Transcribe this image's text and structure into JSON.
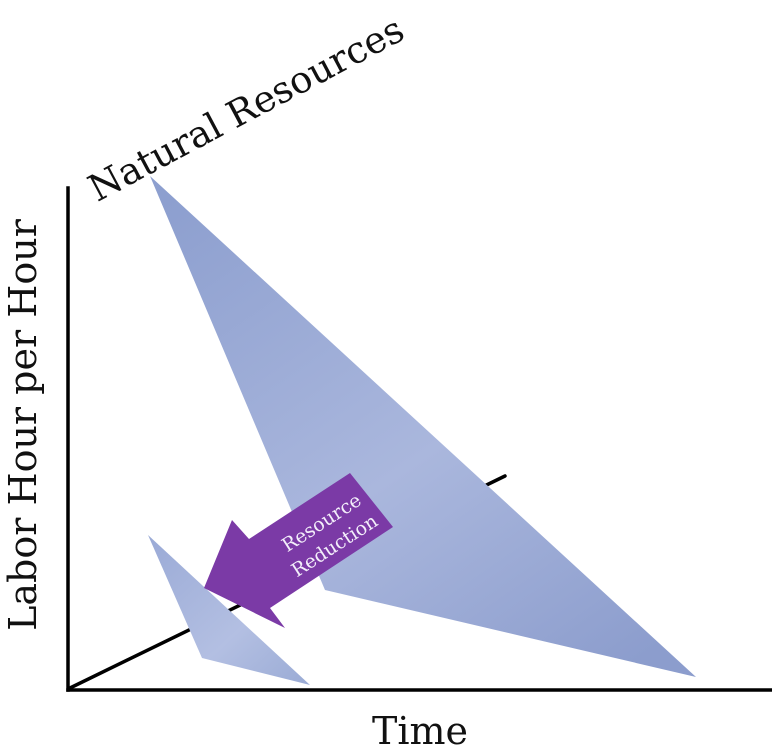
{
  "labels": {
    "y_axis": "Labor Hour per Hour",
    "x_axis": "Time",
    "large_shape": "Natural Resources",
    "arrow_line1": "Resource",
    "arrow_line2": "Reduction"
  },
  "colors": {
    "axis": "#000000",
    "shape_light": "#c6cfe8",
    "shape_dark": "#8d9fcf",
    "arrow_fill": "#7b3aa6",
    "arrow_text": "#f3eefa"
  }
}
